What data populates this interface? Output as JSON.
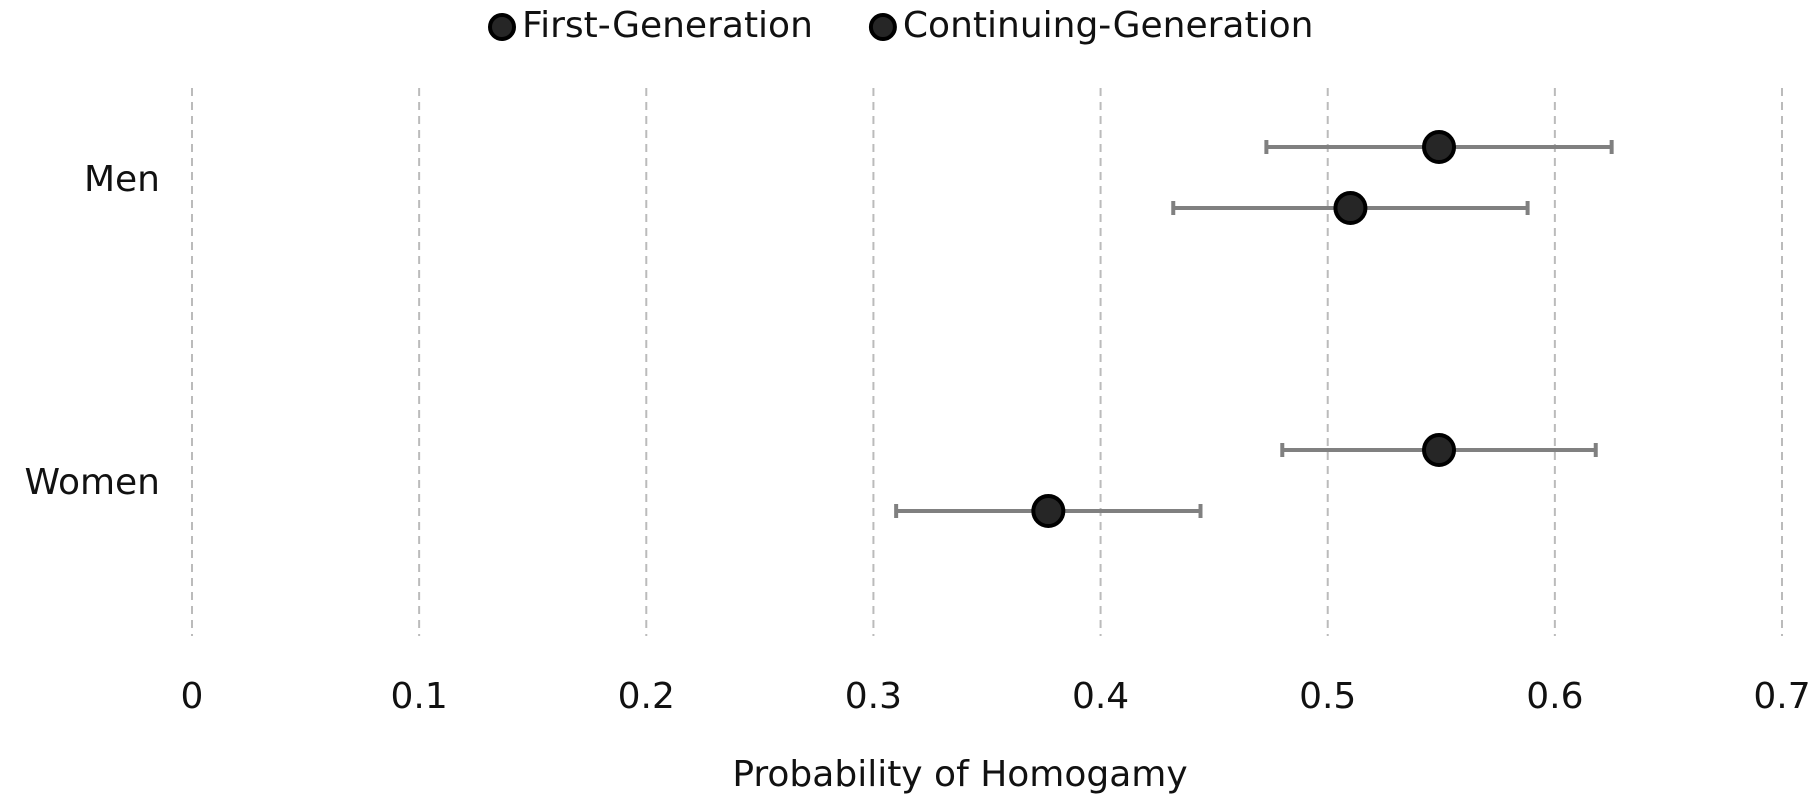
{
  "chart_data": {
    "type": "dot",
    "categories": [
      "Men",
      "Women"
    ],
    "series": [
      {
        "name": "First-Generation",
        "color": "#262626",
        "values": [
          0.549,
          0.549
        ],
        "errors": [
          0.076,
          0.069
        ]
      },
      {
        "name": "Continuing-Generation",
        "color": "#262626",
        "values": [
          0.51,
          0.377
        ],
        "errors": [
          0.078,
          0.067
        ]
      }
    ],
    "xlabel": "Probability of Homogamy",
    "xlim": [
      0,
      0.7
    ],
    "xticks": [
      0,
      0.1,
      0.2,
      0.3,
      0.4,
      0.5,
      0.6,
      0.7
    ],
    "grid": true,
    "legend": "top",
    "error_color": "#808080"
  }
}
